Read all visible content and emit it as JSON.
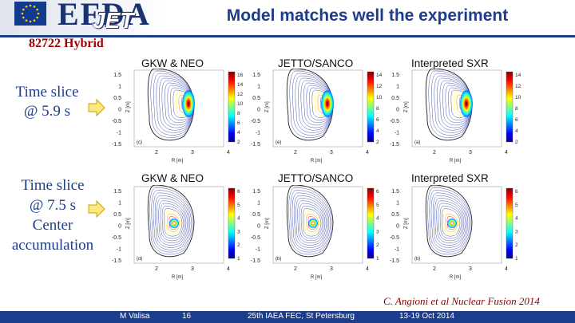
{
  "header": {
    "logo_text": "EFDA",
    "logo_sub": "JET",
    "title": "Model matches well the experiment"
  },
  "shot_label": "82722 Hybrid",
  "rows": [
    {
      "label_lines": [
        "Time slice",
        "@ 5.9 s"
      ],
      "panels": [
        {
          "title": "GKW & NEO",
          "letter": "(c)",
          "ylabel": "Z [m]",
          "xlabel": "R [m]",
          "cb_ticks": [
            "16",
            "14",
            "12",
            "10",
            "8",
            "6",
            "4",
            "2"
          ]
        },
        {
          "title": "JETTO/SANCO",
          "letter": "(e)",
          "ylabel": "Z [m]",
          "xlabel": "R [m]",
          "cb_ticks": [
            "14",
            "12",
            "10",
            "8",
            "6",
            "4",
            "2"
          ]
        },
        {
          "title": "Interpreted SXR",
          "letter": "(a)",
          "ylabel": "Z [m]",
          "xlabel": "R [m]",
          "cb_ticks": [
            "14",
            "12",
            "10",
            "8",
            "6",
            "4",
            "2"
          ]
        }
      ]
    },
    {
      "label_lines": [
        "Time slice",
        "@ 7.5 s",
        "Center",
        "accumulation"
      ],
      "panels": [
        {
          "title": "GKW & NEO",
          "letter": "(d)",
          "ylabel": "Z [m]",
          "xlabel": "R [m]",
          "cb_ticks": [
            "6",
            "5",
            "4",
            "3",
            "2",
            "1"
          ]
        },
        {
          "title": "JETTO/SANCO",
          "letter": "(b)",
          "ylabel": "Z [m]",
          "xlabel": "R [m]",
          "cb_ticks": [
            "6",
            "5",
            "4",
            "3",
            "2",
            "1"
          ]
        },
        {
          "title": "Interpreted SXR",
          "letter": "(b)",
          "ylabel": "Z [m]",
          "xlabel": "R [m]",
          "cb_ticks": [
            "6",
            "5",
            "4",
            "3",
            "2",
            "1"
          ]
        }
      ]
    }
  ],
  "y_ticks": [
    "1.5",
    "1",
    "0.5",
    "0",
    "-0.5",
    "-1",
    "-1.5"
  ],
  "x_ticks": [
    "2",
    "3",
    "4"
  ],
  "citation": "C. Angioni et al Nuclear Fusion 2014",
  "footer": {
    "author": "M Valisa",
    "page": "16",
    "conference": "25th IAEA FEC, St Petersburg",
    "dates": "13-19 Oct 2014"
  },
  "colors": {
    "accent": "#1c3c8c",
    "citation": "#8a0000",
    "shot": "#a00000"
  }
}
